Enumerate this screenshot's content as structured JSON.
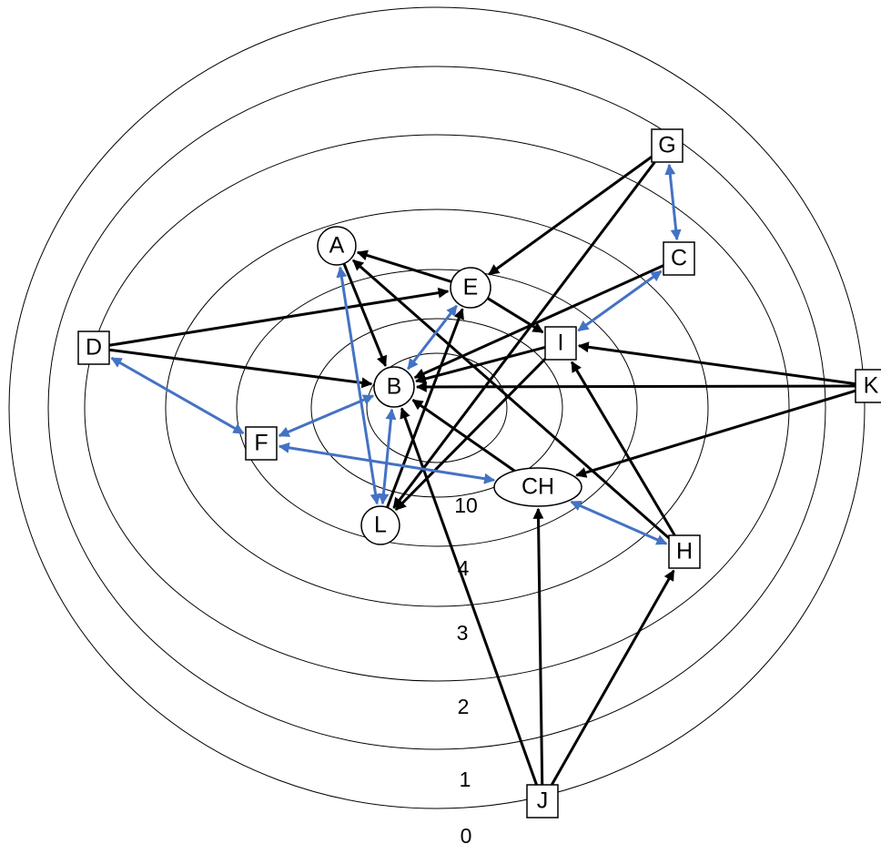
{
  "colors": {
    "directed": "#000000",
    "mutual": "#4472C4",
    "ring": "#000000",
    "node_fill": "#ffffff"
  },
  "rings": [
    {
      "id": "r0",
      "label": "0"
    },
    {
      "id": "r1",
      "label": "1"
    },
    {
      "id": "r2",
      "label": "2"
    },
    {
      "id": "r3",
      "label": "3"
    },
    {
      "id": "r4",
      "label": "4"
    },
    {
      "id": "r10",
      "label": "10"
    },
    {
      "id": "r-core",
      "label": ""
    }
  ],
  "nodes": [
    {
      "id": "A",
      "label": "A",
      "shape": "circle"
    },
    {
      "id": "B",
      "label": "B",
      "shape": "circle"
    },
    {
      "id": "E",
      "label": "E",
      "shape": "circle"
    },
    {
      "id": "L",
      "label": "L",
      "shape": "circle"
    },
    {
      "id": "CH",
      "label": "CH",
      "shape": "ellipse"
    },
    {
      "id": "C",
      "label": "C",
      "shape": "square"
    },
    {
      "id": "D",
      "label": "D",
      "shape": "square"
    },
    {
      "id": "F",
      "label": "F",
      "shape": "square"
    },
    {
      "id": "G",
      "label": "G",
      "shape": "square"
    },
    {
      "id": "H",
      "label": "H",
      "shape": "square"
    },
    {
      "id": "I",
      "label": "I",
      "shape": "square"
    },
    {
      "id": "J",
      "label": "J",
      "shape": "square"
    },
    {
      "id": "K",
      "label": "K",
      "shape": "square"
    }
  ],
  "edges": [
    {
      "from": "D",
      "to": "E",
      "type": "directed"
    },
    {
      "from": "D",
      "to": "B",
      "type": "directed"
    },
    {
      "from": "G",
      "to": "E",
      "type": "directed"
    },
    {
      "from": "G",
      "to": "L",
      "type": "directed"
    },
    {
      "from": "C",
      "to": "B",
      "type": "directed"
    },
    {
      "from": "E",
      "to": "A",
      "type": "directed"
    },
    {
      "from": "E",
      "to": "I",
      "type": "directed"
    },
    {
      "from": "A",
      "to": "B",
      "type": "directed"
    },
    {
      "from": "I",
      "to": "B",
      "type": "directed"
    },
    {
      "from": "I",
      "to": "L",
      "type": "directed"
    },
    {
      "from": "K",
      "to": "I",
      "type": "directed"
    },
    {
      "from": "K",
      "to": "B",
      "type": "directed"
    },
    {
      "from": "K",
      "to": "CH",
      "type": "directed"
    },
    {
      "from": "H",
      "to": "A",
      "type": "directed"
    },
    {
      "from": "H",
      "to": "I",
      "type": "directed"
    },
    {
      "from": "L",
      "to": "E",
      "type": "directed"
    },
    {
      "from": "CH",
      "to": "B",
      "type": "directed"
    },
    {
      "from": "J",
      "to": "B",
      "type": "directed"
    },
    {
      "from": "J",
      "to": "CH",
      "type": "directed"
    },
    {
      "from": "J",
      "to": "H",
      "type": "directed"
    },
    {
      "from": "G",
      "to": "C",
      "type": "mutual"
    },
    {
      "from": "C",
      "to": "I",
      "type": "mutual"
    },
    {
      "from": "E",
      "to": "B",
      "type": "mutual"
    },
    {
      "from": "D",
      "to": "F",
      "type": "mutual"
    },
    {
      "from": "F",
      "to": "B",
      "type": "mutual"
    },
    {
      "from": "F",
      "to": "CH",
      "type": "mutual"
    },
    {
      "from": "A",
      "to": "L",
      "type": "mutual"
    },
    {
      "from": "B",
      "to": "L",
      "type": "mutual"
    },
    {
      "from": "CH",
      "to": "H",
      "type": "mutual"
    }
  ]
}
